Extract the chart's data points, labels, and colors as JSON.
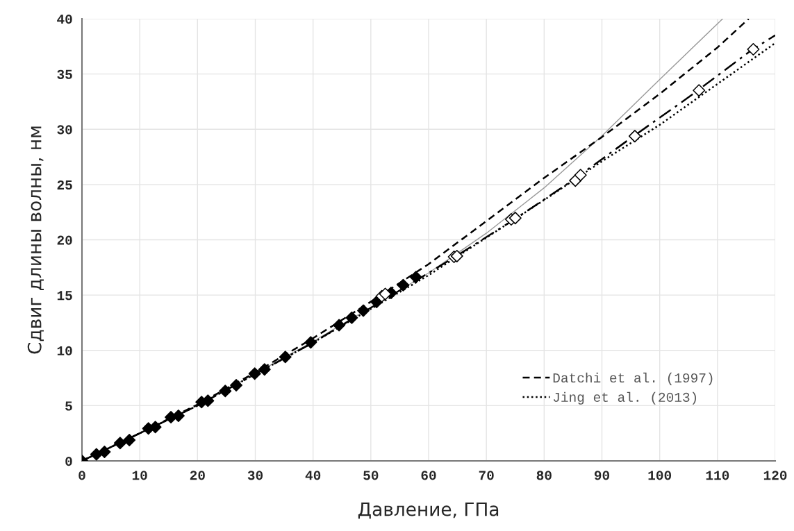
{
  "chart_data": {
    "type": "scatter",
    "xlabel": "Давление, ГПа",
    "ylabel": "Сдвиг длины волны, нм",
    "xlim": [
      0,
      120
    ],
    "xticks": [
      0,
      10,
      20,
      30,
      40,
      50,
      60,
      70,
      80,
      90,
      100,
      110,
      120
    ],
    "ylim": [
      0,
      40
    ],
    "yticks": [
      0,
      5,
      10,
      15,
      20,
      25,
      30,
      35,
      40
    ],
    "grid": true,
    "legend": "bottom right",
    "series": [
      {
        "type": "line",
        "marker": "none",
        "color": "#999999",
        "line_style": "solid",
        "x": [
          0,
          20,
          40,
          60,
          65,
          70,
          80,
          90,
          100,
          110.9
        ],
        "values": [
          0,
          5.0,
          10.8,
          17.0,
          18.8,
          20.6,
          24.7,
          29.4,
          34.5,
          40
        ]
      },
      {
        "type": "line",
        "name": "Datchi et al. (1997)",
        "color": "#000000",
        "marker": "none",
        "line_style": "dashed",
        "x": [
          0,
          10,
          20,
          30,
          40,
          50,
          60,
          70,
          80,
          90,
          100,
          110,
          115.4
        ],
        "values": [
          0,
          2.5,
          5.1,
          8.0,
          11.1,
          14.4,
          17.8,
          21.7,
          25.6,
          29.3,
          33.2,
          37.4,
          40
        ]
      },
      {
        "type": "line",
        "name": "Jing et al. (2013)",
        "color": "#000000",
        "marker": "none",
        "line_style": "dotted",
        "x": [
          0,
          20,
          40,
          60,
          70,
          80,
          90,
          100,
          110,
          120
        ],
        "values": [
          0,
          5.0,
          10.7,
          16.8,
          20.2,
          23.6,
          27.1,
          30.4,
          34.1,
          37.8
        ]
      },
      {
        "type": "line",
        "marker": "none",
        "color": "#000000",
        "line_style": "dashdot",
        "x": [
          0,
          20,
          40,
          60,
          65,
          75,
          85,
          95,
          105,
          116,
          120
        ],
        "values": [
          0,
          5.0,
          10.7,
          17.0,
          18.6,
          21.9,
          25.4,
          29.2,
          32.9,
          37.2,
          38.5
        ]
      },
      {
        "color": "#000000",
        "marker": "diamond",
        "x": [
          0,
          2.5,
          3.9,
          6.6,
          8.2,
          11.5,
          12.7,
          15.4,
          16.7,
          20.7,
          21.8,
          24.8,
          26.7,
          29.9,
          31.6,
          35.2,
          39.6,
          44.5,
          46.7,
          48.7,
          51.0,
          53.5,
          55.6,
          57.8
        ],
        "values": [
          0,
          0.6,
          0.82,
          1.61,
          1.88,
          2.93,
          3.06,
          3.95,
          4.08,
          5.32,
          5.44,
          6.32,
          6.84,
          7.89,
          8.27,
          9.4,
          10.72,
          12.28,
          12.95,
          13.6,
          14.38,
          15.2,
          15.9,
          16.62
        ]
      },
      {
        "color": "#ffffff",
        "marker": "diamond",
        "x": [
          51.9,
          52.5,
          64.4,
          64.9,
          74.3,
          75.0,
          85.4,
          86.3,
          95.7,
          106.8,
          116.2
        ],
        "values": [
          14.9,
          15.1,
          18.46,
          18.53,
          21.85,
          21.97,
          25.36,
          25.86,
          29.38,
          33.52,
          37.24
        ]
      }
    ]
  }
}
